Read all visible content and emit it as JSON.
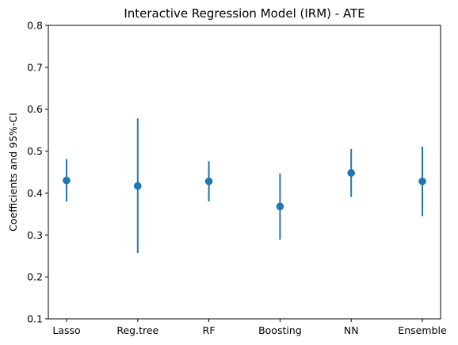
{
  "chart_data": {
    "type": "scatter",
    "title": "Interactive Regression Model (IRM) - ATE",
    "xlabel": "",
    "ylabel": "Coefficients and 95%-CI",
    "categories": [
      "Lasso",
      "Reg.tree",
      "RF",
      "Boosting",
      "NN",
      "Ensemble"
    ],
    "estimates": [
      0.43,
      0.417,
      0.428,
      0.368,
      0.448,
      0.428
    ],
    "ci_lower": [
      0.38,
      0.257,
      0.38,
      0.289,
      0.391,
      0.345
    ],
    "ci_upper": [
      0.481,
      0.578,
      0.476,
      0.447,
      0.505,
      0.511
    ],
    "ylim": [
      0.1,
      0.8
    ],
    "yticks": [
      "0.1",
      "0.2",
      "0.3",
      "0.4",
      "0.5",
      "0.6",
      "0.7",
      "0.8"
    ],
    "grid": false,
    "colors": {
      "series": "#1f77b4",
      "axis": "#000000"
    }
  }
}
